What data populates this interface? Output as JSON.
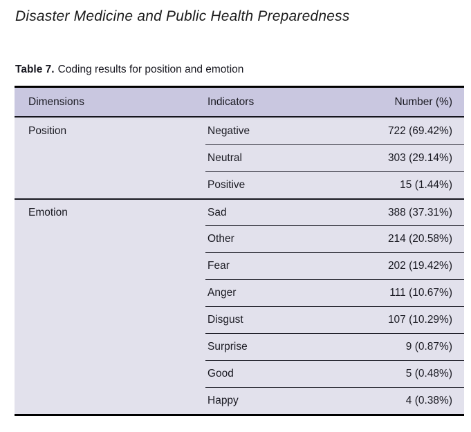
{
  "page": {
    "journal_title": "Disaster Medicine and Public Health Preparedness",
    "caption_label": "Table 7.",
    "caption_text": "Coding results for position and emotion"
  },
  "table": {
    "columns": [
      "Dimensions",
      "Indicators",
      "Number (%)"
    ],
    "groups": [
      {
        "dimension": "Position",
        "rows": [
          {
            "indicator": "Negative",
            "number": "722 (69.42%)"
          },
          {
            "indicator": "Neutral",
            "number": "303 (29.14%)"
          },
          {
            "indicator": "Positive",
            "number": "15 (1.44%)"
          }
        ]
      },
      {
        "dimension": "Emotion",
        "rows": [
          {
            "indicator": "Sad",
            "number": "388 (37.31%)"
          },
          {
            "indicator": "Other",
            "number": "214 (20.58%)"
          },
          {
            "indicator": "Fear",
            "number": "202 (19.42%)"
          },
          {
            "indicator": "Anger",
            "number": "111 (10.67%)"
          },
          {
            "indicator": "Disgust",
            "number": "107 (10.29%)"
          },
          {
            "indicator": "Surprise",
            "number": "9 (0.87%)"
          },
          {
            "indicator": "Good",
            "number": "5 (0.48%)"
          },
          {
            "indicator": "Happy",
            "number": "4 (0.38%)"
          }
        ]
      }
    ],
    "colors": {
      "header_bg": "#c9c7e0",
      "body_bg": "#e2e1ec",
      "rule": "#000000",
      "text": "#1a1a22"
    }
  }
}
